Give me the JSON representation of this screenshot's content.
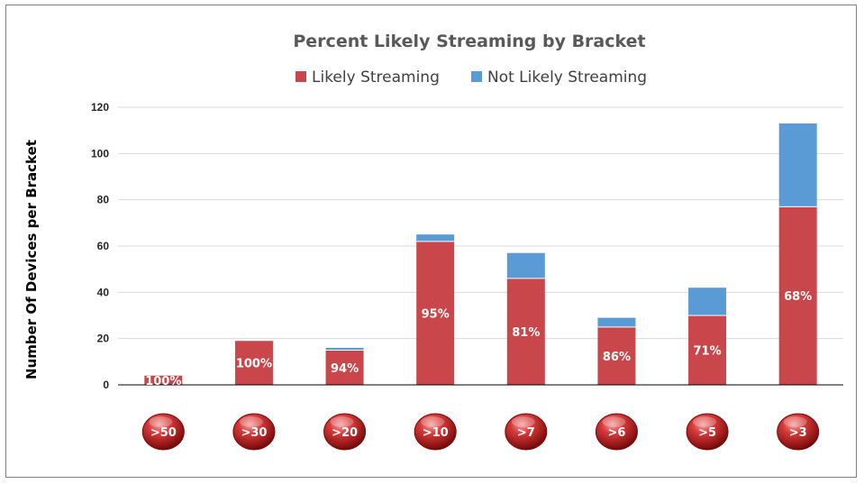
{
  "chart_data": {
    "type": "bar",
    "stacked": true,
    "title": "Percent Likely Streaming by Bracket",
    "ylabel": "Number Of Devices per Bracket",
    "xlabel": "",
    "ylim": [
      0,
      120
    ],
    "yticks": [
      0,
      20,
      40,
      60,
      80,
      100,
      120
    ],
    "grid": true,
    "legend_position": "top",
    "categories": [
      ">50",
      ">30",
      ">20",
      ">10",
      ">7",
      ">6",
      ">5",
      ">3"
    ],
    "series": [
      {
        "name": "Likely Streaming",
        "color": "#c9474a",
        "values": [
          4,
          19,
          15,
          62,
          46,
          25,
          30,
          77
        ]
      },
      {
        "name": "Not Likely Streaming",
        "color": "#5b9bd5",
        "values": [
          0,
          0,
          1,
          3,
          11,
          4,
          12,
          36
        ]
      }
    ],
    "data_labels": [
      "100%",
      "100%",
      "94%",
      "95%",
      "81%",
      "86%",
      "71%",
      "68%"
    ]
  }
}
